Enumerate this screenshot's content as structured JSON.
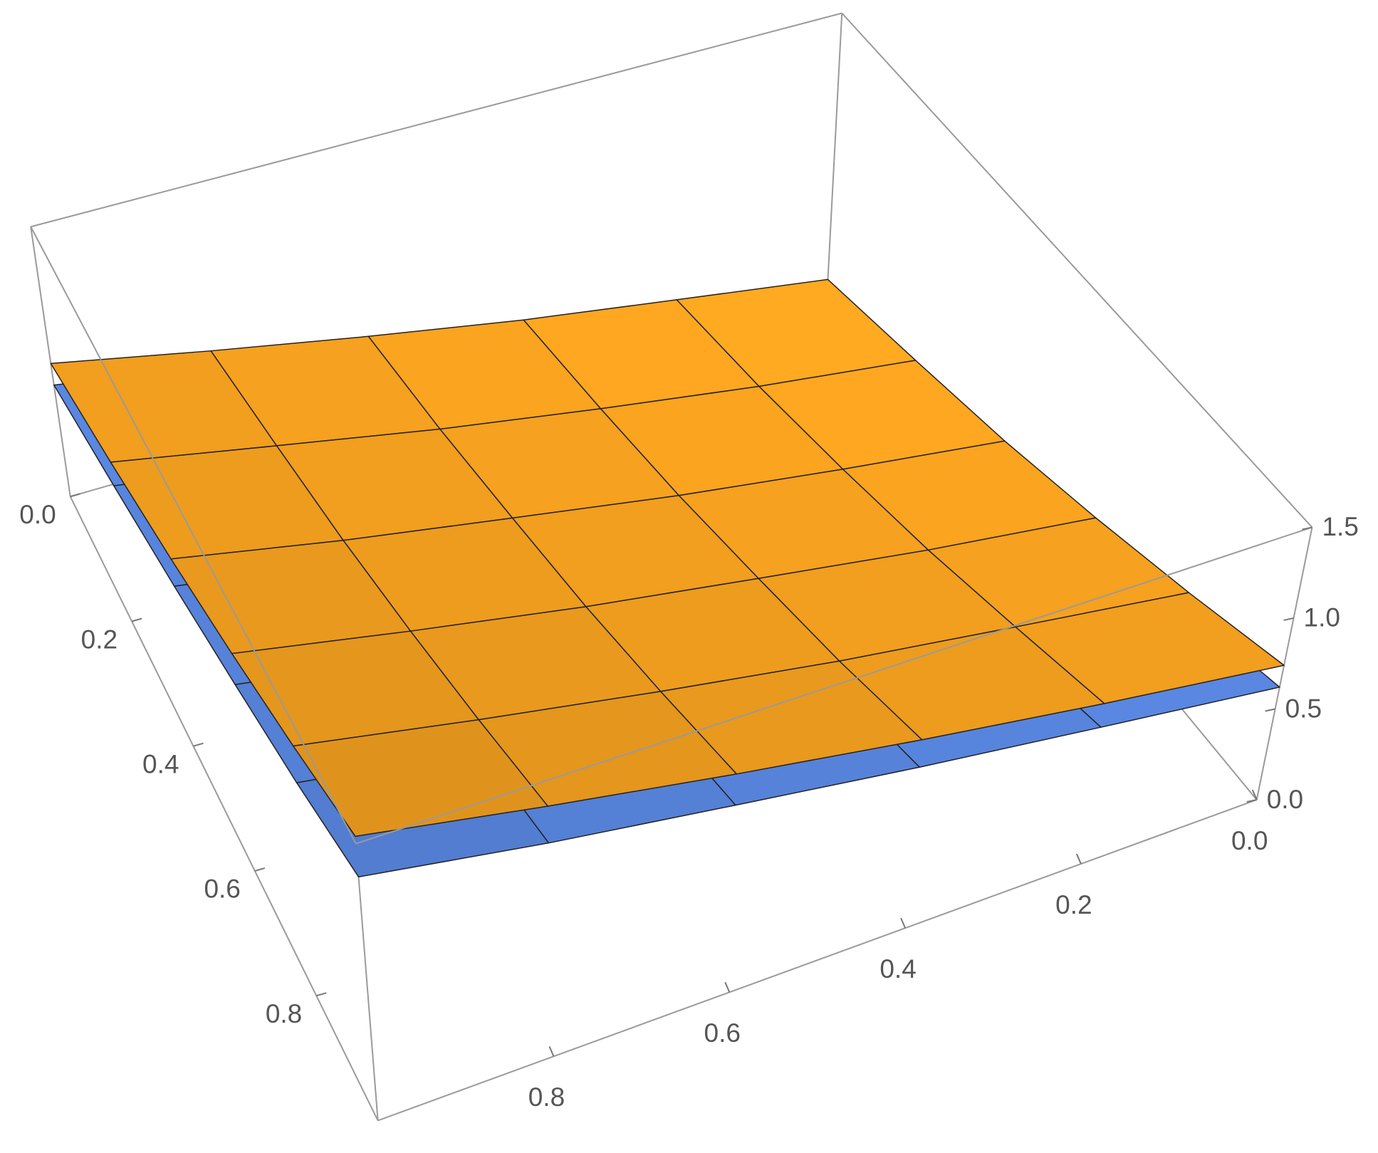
{
  "chart_data": {
    "type": "surface3d",
    "x": [
      0,
      0.2,
      0.4,
      0.6,
      0.8,
      1
    ],
    "y": [
      0,
      0.2,
      0.4,
      0.6,
      0.8,
      1
    ],
    "xlim": [
      0,
      1
    ],
    "ylim": [
      0,
      1
    ],
    "zlim": [
      0,
      1.5
    ],
    "xticks": [
      {
        "value": 0,
        "label": "0.0"
      },
      0.2,
      0.4,
      0.6,
      0.8
    ],
    "yticks": [
      {
        "value": 0,
        "label": "0.0"
      },
      0.2,
      0.4,
      0.6,
      0.8
    ],
    "zticks": [
      {
        "value": 0,
        "label": "0.0"
      },
      0.5,
      {
        "value": 1,
        "label": "1.0"
      },
      1.5
    ],
    "series": [
      {
        "color": "#5b8ae6",
        "values": [
          [
            -0.02,
            0.09,
            0.21,
            0.34,
            0.48,
            0.62
          ],
          [
            0.09,
            0.2,
            0.32,
            0.45,
            0.6,
            0.75
          ],
          [
            0.21,
            0.32,
            0.44,
            0.58,
            0.72,
            0.88
          ],
          [
            0.34,
            0.45,
            0.58,
            0.71,
            0.86,
            1.02
          ],
          [
            0.48,
            0.6,
            0.72,
            0.86,
            1.01,
            1.16
          ],
          [
            0.62,
            0.75,
            0.88,
            1.02,
            1.16,
            1.32
          ]
        ]
      },
      {
        "color": "#f7a21f",
        "values": [
          [
            0,
            0.13,
            0.26,
            0.41,
            0.57,
            0.74
          ],
          [
            0.13,
            0.25,
            0.39,
            0.54,
            0.71,
            0.88
          ],
          [
            0.26,
            0.39,
            0.53,
            0.69,
            0.85,
            1.03
          ],
          [
            0.41,
            0.54,
            0.69,
            0.84,
            1.01,
            1.19
          ],
          [
            0.57,
            0.71,
            0.85,
            1.01,
            1.18,
            1.36
          ],
          [
            0.74,
            0.88,
            1.03,
            1.19,
            1.36,
            1.54
          ]
        ]
      }
    ]
  }
}
